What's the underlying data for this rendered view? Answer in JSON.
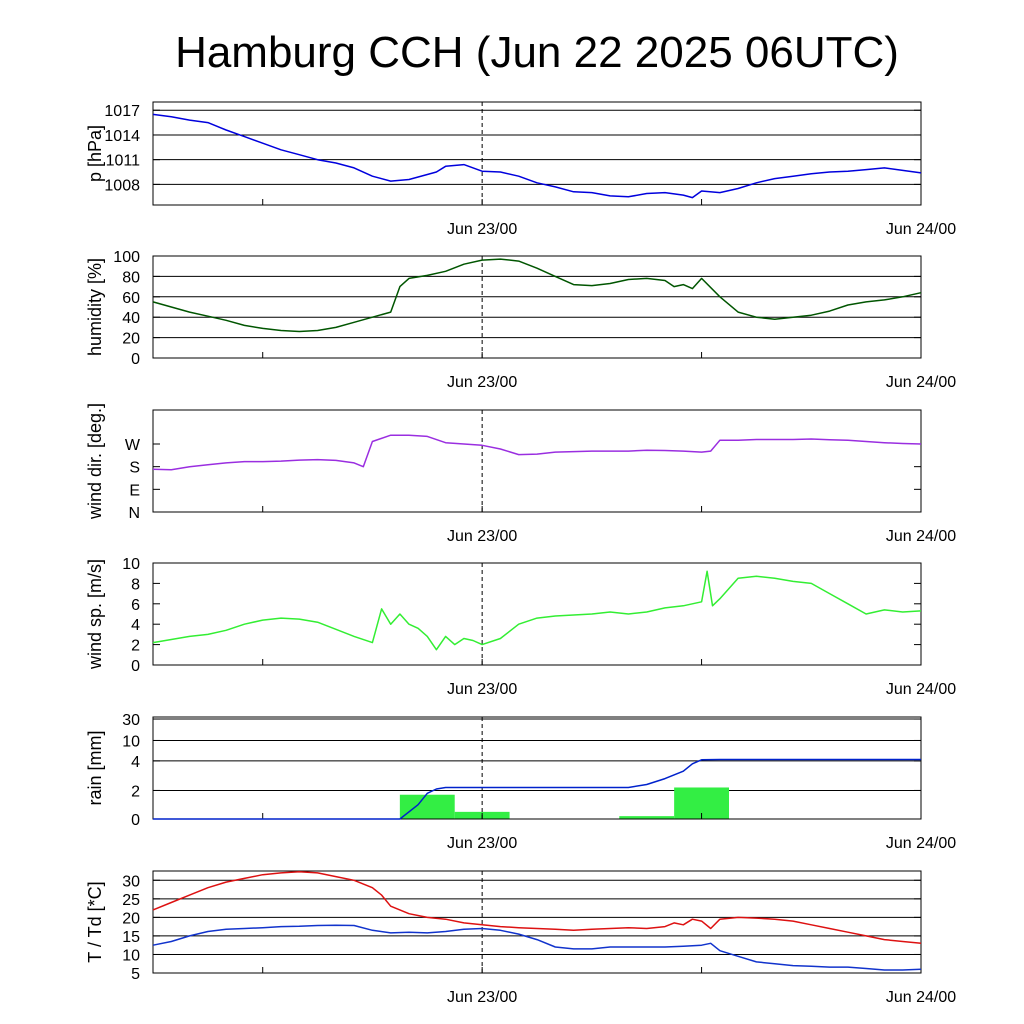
{
  "title": "Hamburg CCH (Jun 22 2025 06UTC)",
  "colors": {
    "pressure": "#0000dd",
    "humidity": "#005500",
    "wind_dir": "#9a2ee0",
    "wind_speed": "#33ee33",
    "rain_bar": "#33ee44",
    "rain_total": "#0022cc",
    "temperature": "#dd1111",
    "dewpoint": "#1133cc"
  },
  "chart_data": [
    {
      "type": "line",
      "id": "pressure",
      "ylabel": "p [hPa]",
      "ylim": [
        1005.5,
        1018
      ],
      "yticks": [
        1008,
        1011,
        1014,
        1017
      ],
      "ytick_labels": [
        "1008",
        "1011",
        "1014",
        "1017"
      ],
      "grid": true,
      "x_time_labels": [
        "Jun 23/00",
        "Jun 24/00"
      ],
      "series": [
        {
          "color_key": "pressure",
          "x": [
            0,
            1,
            2,
            3,
            4,
            5,
            6,
            7,
            8,
            9,
            10,
            11,
            12,
            13,
            14,
            15,
            15.5,
            16,
            17,
            18,
            19,
            20,
            21,
            22,
            23,
            24,
            25,
            26,
            27,
            28,
            29,
            29.5,
            30,
            31,
            32,
            33,
            34,
            35,
            36,
            37,
            38,
            39,
            40,
            41,
            42
          ],
          "y": [
            1016.5,
            1016.2,
            1015.8,
            1015.5,
            1014.6,
            1013.8,
            1013.0,
            1012.2,
            1011.6,
            1011.0,
            1010.6,
            1010.0,
            1009.0,
            1008.4,
            1008.6,
            1009.2,
            1009.5,
            1010.2,
            1010.4,
            1009.6,
            1009.5,
            1009.0,
            1008.2,
            1007.7,
            1007.1,
            1007.0,
            1006.6,
            1006.5,
            1006.9,
            1007.0,
            1006.7,
            1006.4,
            1007.2,
            1007.0,
            1007.5,
            1008.2,
            1008.7,
            1009.0,
            1009.3,
            1009.5,
            1009.6,
            1009.8,
            1010.0,
            1009.7,
            1009.4
          ]
        }
      ]
    },
    {
      "type": "line",
      "id": "humidity",
      "ylabel": "humidity [%]",
      "ylim": [
        0,
        100
      ],
      "yticks": [
        0,
        20,
        40,
        60,
        80,
        100
      ],
      "ytick_labels": [
        "0",
        "20",
        "40",
        "60",
        "80",
        "100"
      ],
      "grid": true,
      "x_time_labels": [
        "Jun 23/00",
        "Jun 24/00"
      ],
      "series": [
        {
          "color_key": "humidity",
          "x": [
            0,
            1,
            2,
            3,
            4,
            5,
            6,
            7,
            8,
            9,
            10,
            11,
            12,
            13,
            13.5,
            14,
            15,
            16,
            17,
            18,
            19,
            20,
            21,
            22,
            23,
            24,
            25,
            26,
            27,
            28,
            28.5,
            29,
            29.5,
            30,
            31,
            32,
            33,
            34,
            35,
            36,
            37,
            38,
            39,
            40,
            41,
            42
          ],
          "y": [
            55,
            50,
            45,
            41,
            37,
            32,
            29,
            27,
            26,
            27,
            30,
            35,
            40,
            45,
            70,
            78,
            81,
            85,
            92,
            96,
            97,
            95,
            88,
            80,
            72,
            71,
            73,
            77,
            78,
            76,
            70,
            72,
            68,
            78,
            60,
            45,
            40,
            38,
            40,
            42,
            46,
            52,
            55,
            57,
            60,
            64
          ]
        }
      ]
    },
    {
      "type": "line",
      "id": "wind_dir",
      "ylabel": "wind dir. [deg.]",
      "ylim": [
        0,
        405
      ],
      "yticks": [
        0,
        90,
        180,
        270
      ],
      "ytick_labels": [
        "N",
        "E",
        "S",
        "W"
      ],
      "grid": false,
      "x_time_labels": [
        "Jun 23/00",
        "Jun 24/00"
      ],
      "series": [
        {
          "color_key": "wind_dir",
          "x": [
            0,
            1,
            2,
            3,
            4,
            5,
            6,
            7,
            8,
            9,
            10,
            11,
            11.5,
            12,
            13,
            14,
            15,
            16,
            17,
            18,
            19,
            20,
            21,
            22,
            23,
            24,
            25,
            26,
            27,
            28,
            29,
            30,
            30.5,
            31,
            32,
            33,
            34,
            35,
            36,
            37,
            38,
            39,
            40,
            41,
            42
          ],
          "y": [
            170,
            168,
            180,
            188,
            195,
            200,
            200,
            202,
            206,
            208,
            205,
            195,
            180,
            280,
            305,
            305,
            300,
            275,
            270,
            265,
            250,
            228,
            230,
            238,
            240,
            242,
            242,
            242,
            245,
            244,
            242,
            238,
            242,
            285,
            285,
            288,
            288,
            288,
            290,
            287,
            285,
            280,
            275,
            272,
            270
          ]
        }
      ]
    },
    {
      "type": "line",
      "id": "wind_speed",
      "ylabel": "wind sp. [m/s]",
      "ylim": [
        0,
        10
      ],
      "yticks": [
        0,
        2,
        4,
        6,
        8,
        10
      ],
      "ytick_labels": [
        "0",
        "2",
        "4",
        "6",
        "8",
        "10"
      ],
      "grid": false,
      "x_time_labels": [
        "Jun 23/00",
        "Jun 24/00"
      ],
      "series": [
        {
          "color_key": "wind_speed",
          "x": [
            0,
            1,
            2,
            3,
            4,
            5,
            6,
            7,
            8,
            9,
            10,
            11,
            12,
            12.5,
            13,
            13.5,
            14,
            14.5,
            15,
            15.5,
            16,
            16.5,
            17,
            17.5,
            18,
            19,
            20,
            21,
            22,
            23,
            24,
            25,
            26,
            27,
            28,
            29,
            30,
            30.3,
            30.6,
            31,
            32,
            33,
            34,
            35,
            36,
            37,
            38,
            39,
            40,
            41,
            42
          ],
          "y": [
            2.2,
            2.5,
            2.8,
            3.0,
            3.4,
            4.0,
            4.4,
            4.6,
            4.5,
            4.2,
            3.5,
            2.8,
            2.2,
            5.5,
            4.0,
            5.0,
            4.0,
            3.6,
            2.8,
            1.5,
            2.8,
            2.0,
            2.6,
            2.4,
            2.0,
            2.6,
            4.0,
            4.6,
            4.8,
            4.9,
            5.0,
            5.2,
            5.0,
            5.2,
            5.6,
            5.8,
            6.2,
            9.2,
            5.8,
            6.5,
            8.5,
            8.7,
            8.5,
            8.2,
            8.0,
            7.0,
            6.0,
            5.0,
            5.4,
            5.2,
            5.3
          ]
        }
      ]
    },
    {
      "type": "bar",
      "id": "rain",
      "ylabel": "rain [mm]",
      "yscale": "nonlinear",
      "yticks": [
        0,
        2,
        4,
        10,
        30
      ],
      "ytick_labels": [
        "0",
        "2",
        "4",
        "10",
        "30"
      ],
      "ylim": [
        0,
        30
      ],
      "grid": true,
      "x_time_labels": [
        "Jun 23/00",
        "Jun 24/00"
      ],
      "bars": [
        {
          "x0": 13.5,
          "x1": 16.5,
          "value": 1.7
        },
        {
          "x0": 16.5,
          "x1": 19.5,
          "value": 0.5
        },
        {
          "x0": 25.5,
          "x1": 28.5,
          "value": 0.2
        },
        {
          "x0": 28.5,
          "x1": 31.5,
          "value": 2.2
        },
        {
          "x0": 31.5,
          "x1": 34.5,
          "value": 0.03
        }
      ],
      "series": [
        {
          "color_key": "rain_total",
          "x": [
            0,
            13.5,
            14.5,
            15,
            15.5,
            16,
            20,
            24,
            25,
            26,
            27,
            28,
            29,
            29.5,
            30,
            31,
            35,
            42
          ],
          "y": [
            0,
            0,
            1.0,
            1.8,
            2.1,
            2.2,
            2.2,
            2.2,
            2.2,
            2.2,
            2.4,
            2.8,
            3.3,
            3.8,
            4.3,
            4.4,
            4.4,
            4.4
          ]
        }
      ]
    },
    {
      "type": "line",
      "id": "temp",
      "ylabel": "T / Td [*C]",
      "ylim": [
        5,
        32.5
      ],
      "yticks": [
        5,
        10,
        15,
        20,
        25,
        30
      ],
      "ytick_labels": [
        "5",
        "10",
        "15",
        "20",
        "25",
        "30"
      ],
      "grid": true,
      "x_time_labels": [
        "Jun 23/00",
        "Jun 24/00"
      ],
      "series": [
        {
          "color_key": "temperature",
          "x": [
            0,
            1,
            2,
            3,
            4,
            5,
            6,
            7,
            8,
            9,
            10,
            11,
            12,
            12.5,
            13,
            14,
            15,
            16,
            17,
            18,
            19,
            20,
            21,
            22,
            23,
            24,
            25,
            26,
            27,
            28,
            28.5,
            29,
            29.5,
            30,
            30.5,
            31,
            32,
            33,
            34,
            35,
            36,
            37,
            38,
            39,
            40,
            41,
            42
          ],
          "y": [
            22,
            24,
            26,
            28,
            29.5,
            30.5,
            31.5,
            32,
            32.3,
            32,
            31,
            30,
            28,
            26,
            23,
            21,
            20,
            19.5,
            18.5,
            18,
            17.5,
            17.2,
            17.0,
            16.8,
            16.5,
            16.8,
            17.0,
            17.2,
            17.0,
            17.5,
            18.5,
            18.0,
            19.5,
            19.0,
            17.0,
            19.5,
            20.0,
            19.8,
            19.5,
            19.0,
            18.0,
            17.0,
            16.0,
            15.0,
            14.0,
            13.5,
            13.0
          ]
        },
        {
          "color_key": "dewpoint",
          "x": [
            0,
            1,
            2,
            3,
            4,
            5,
            6,
            7,
            8,
            9,
            10,
            11,
            12,
            13,
            14,
            15,
            16,
            17,
            18,
            19,
            20,
            21,
            22,
            23,
            24,
            25,
            26,
            27,
            28,
            29,
            30,
            30.5,
            31,
            32,
            33,
            34,
            35,
            36,
            37,
            38,
            39,
            40,
            41,
            42
          ],
          "y": [
            12.5,
            13.5,
            15.0,
            16.2,
            16.8,
            17.0,
            17.2,
            17.5,
            17.6,
            17.8,
            17.9,
            17.8,
            16.5,
            15.8,
            16.0,
            15.8,
            16.2,
            16.8,
            17.0,
            16.5,
            15.5,
            14.0,
            12.0,
            11.5,
            11.5,
            12.0,
            12.0,
            12.0,
            12.0,
            12.2,
            12.5,
            13.0,
            11.0,
            9.5,
            8.0,
            7.5,
            7.0,
            6.8,
            6.6,
            6.6,
            6.2,
            5.8,
            5.8,
            6.0
          ]
        }
      ]
    }
  ]
}
